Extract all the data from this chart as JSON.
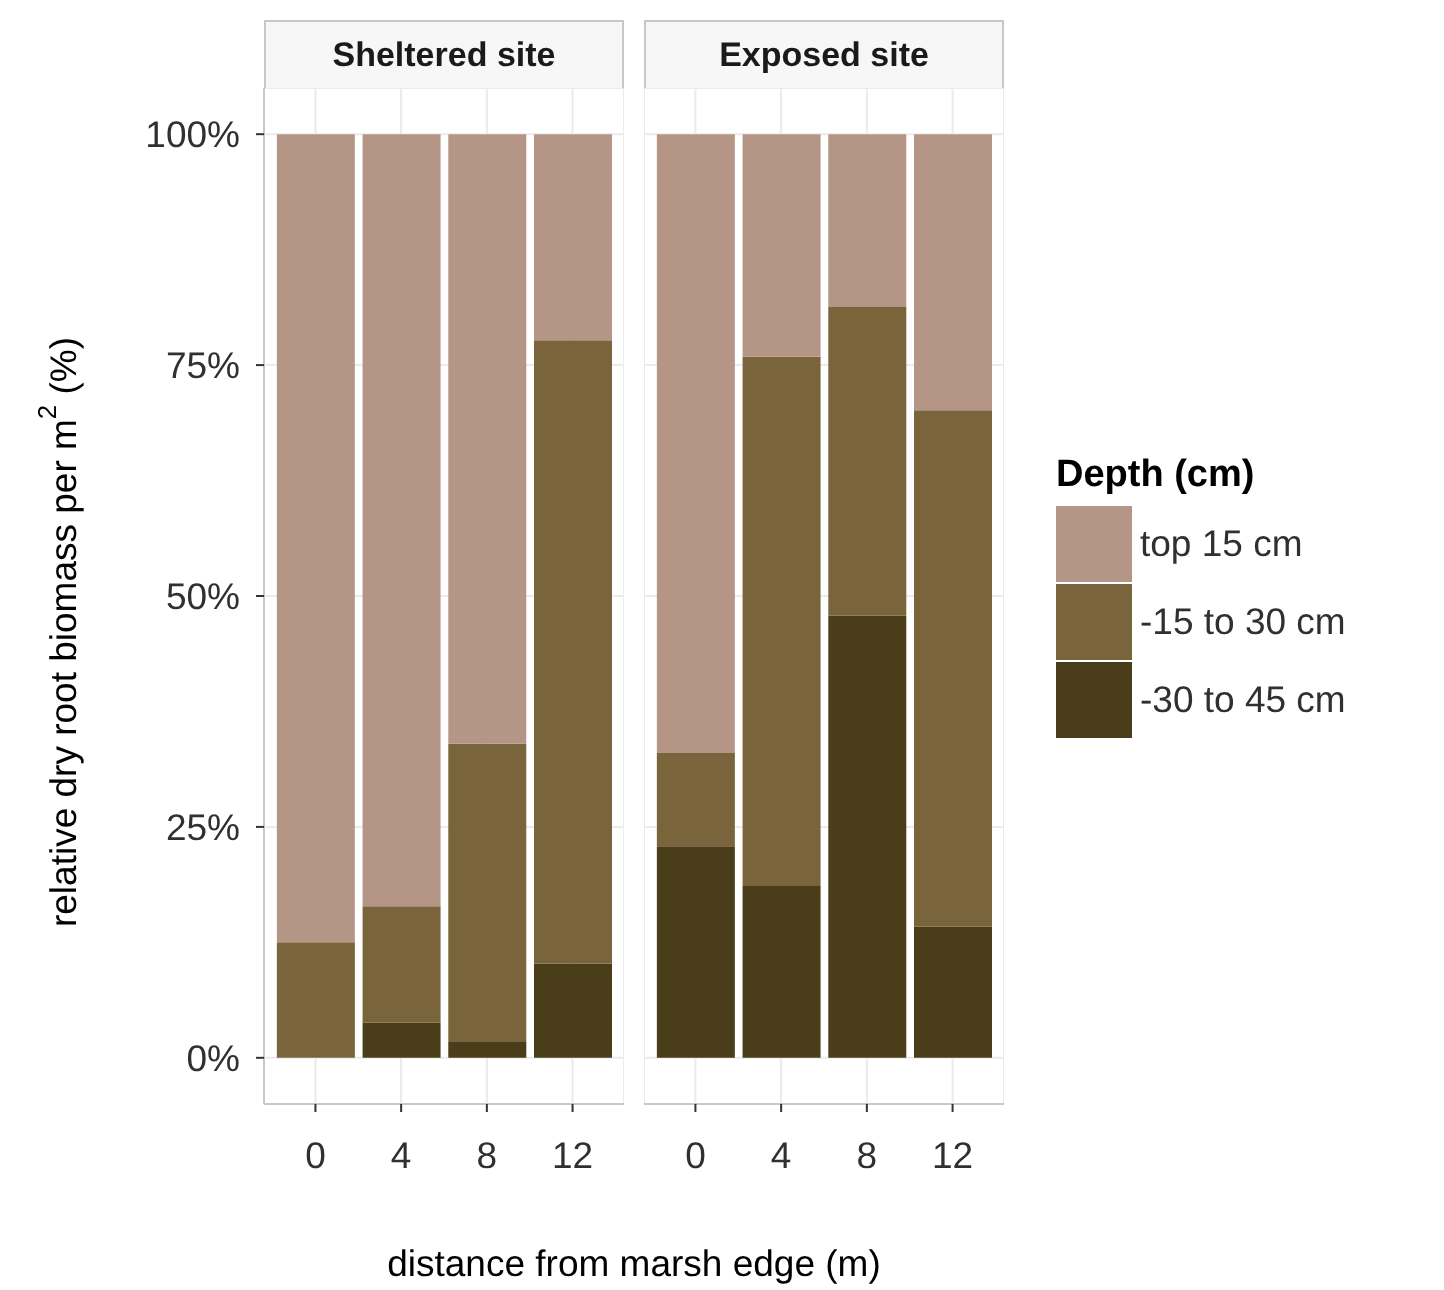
{
  "chart_data": [
    {
      "type": "bar",
      "title": "Sheltered site",
      "xlabel": "distance from marsh edge (m)",
      "ylabel": "relative dry root biomass per m$^{2}$ (%)",
      "categories": [
        "0",
        "4",
        "8",
        "12"
      ],
      "stacked": true,
      "ylim": [
        -5,
        105
      ],
      "yticks": [
        {
          "value": 0,
          "label": "0%"
        },
        {
          "value": 25,
          "label": "25%"
        },
        {
          "value": 50,
          "label": "50%"
        },
        {
          "value": 75,
          "label": "75%"
        },
        {
          "value": 100,
          "label": "100%"
        }
      ],
      "grid": true,
      "series": [
        {
          "color": "#4a3d1a",
          "values": [
            0,
            3.8,
            1.7,
            10.2
          ]
        },
        {
          "color": "#7a643b",
          "values": [
            12.5,
            12.6,
            32.3,
            67.5
          ]
        },
        {
          "color": "#b59686",
          "values": [
            87.5,
            83.6,
            66.0,
            22.3
          ]
        }
      ]
    },
    {
      "type": "bar",
      "title": "Exposed site",
      "categories": [
        "0",
        "4",
        "8",
        "12"
      ],
      "stacked": true,
      "ylim": [
        -5,
        105
      ],
      "yticks": [
        0,
        25,
        50,
        75,
        100
      ],
      "grid": true,
      "tick_labels": "x",
      "legend": "right",
      "legend_title": "Depth (cm)",
      "series": [
        {
          "name": "-30 to 45 cm",
          "color": "#4a3d1a",
          "values": [
            22.9,
            18.6,
            47.9,
            14.2
          ]
        },
        {
          "name": "-15 to 30 cm",
          "color": "#7a643b",
          "values": [
            10.1,
            57.3,
            33.4,
            55.9
          ]
        },
        {
          "name": "top 15 cm",
          "color": "#b59686",
          "values": [
            67.0,
            24.1,
            18.7,
            29.9
          ]
        }
      ]
    }
  ]
}
